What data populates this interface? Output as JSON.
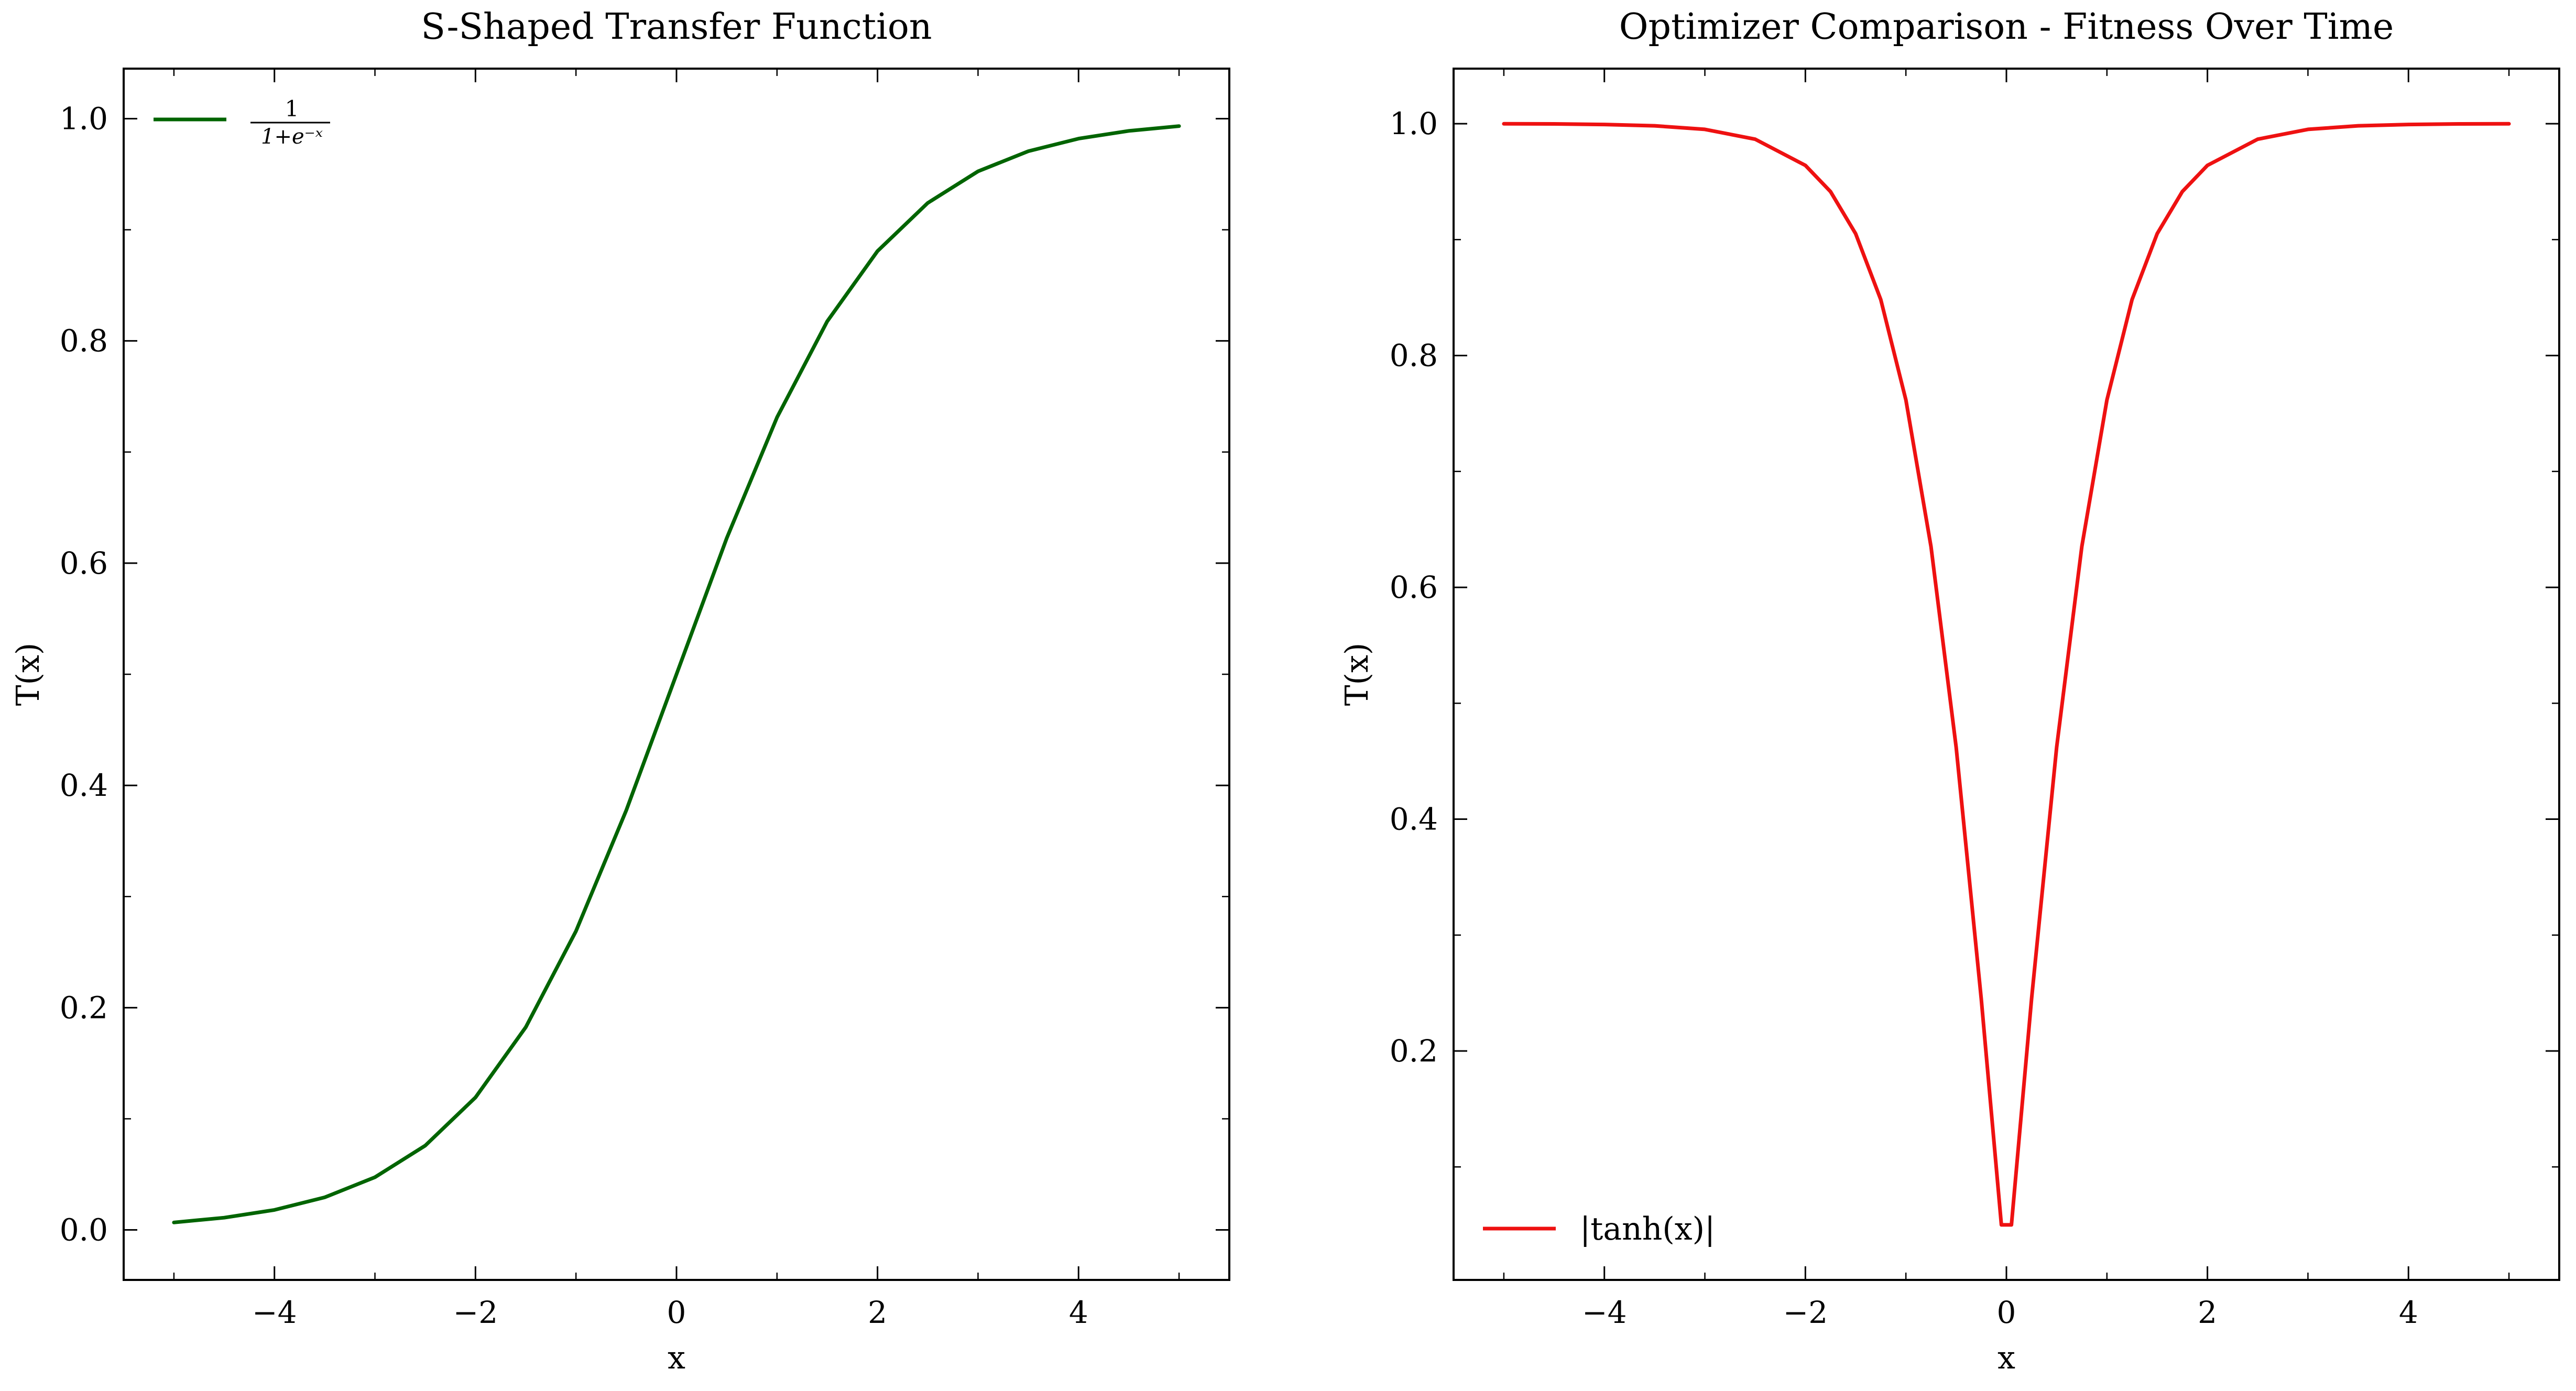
{
  "chart_data": [
    {
      "type": "line",
      "title": "S-Shaped Transfer Function",
      "xlabel": "x",
      "ylabel": "T(x)",
      "xlim": [
        -5.5,
        5.5
      ],
      "ylim": [
        -0.045,
        1.045
      ],
      "xticks": [
        -4,
        -2,
        0,
        2,
        4
      ],
      "xtick_labels": [
        "−4",
        "−2",
        "0",
        "2",
        "4"
      ],
      "yticks": [
        0.0,
        0.2,
        0.4,
        0.6,
        0.8,
        1.0
      ],
      "ytick_labels": [
        "0.0",
        "0.2",
        "0.4",
        "0.6",
        "0.8",
        "1.0"
      ],
      "grid": false,
      "legend_position": "upper-left",
      "series": [
        {
          "name": "1/(1+e^{-x})",
          "legend_numerator": "1",
          "legend_denominator": "1+e⁻ˣ",
          "color": "#006400",
          "x": [
            -5.0,
            -4.5,
            -4.0,
            -3.5,
            -3.0,
            -2.5,
            -2.0,
            -1.5,
            -1.0,
            -0.5,
            0.0,
            0.5,
            1.0,
            1.5,
            2.0,
            2.5,
            3.0,
            3.5,
            4.0,
            4.5,
            5.0
          ],
          "y": [
            0.0067,
            0.011,
            0.018,
            0.0293,
            0.0474,
            0.0759,
            0.1192,
            0.1824,
            0.2689,
            0.3775,
            0.5,
            0.6225,
            0.7311,
            0.8176,
            0.8808,
            0.9241,
            0.9526,
            0.9707,
            0.982,
            0.989,
            0.9933
          ]
        }
      ]
    },
    {
      "type": "line",
      "title": "Optimizer Comparison - Fitness Over Time",
      "xlabel": "x",
      "ylabel": "T(x)",
      "xlim": [
        -5.5,
        5.5
      ],
      "ylim": [
        0.0025,
        1.0475
      ],
      "xticks": [
        -4,
        -2,
        0,
        2,
        4
      ],
      "xtick_labels": [
        "−4",
        "−2",
        "0",
        "2",
        "4"
      ],
      "yticks": [
        0.2,
        0.4,
        0.6,
        0.8,
        1.0
      ],
      "ytick_labels": [
        "0.2",
        "0.4",
        "0.6",
        "0.8",
        "1.0"
      ],
      "grid": false,
      "legend_position": "lower-left",
      "series": [
        {
          "name": "|tanh(x)|",
          "legend_text": "|tanh(x)|",
          "color": "#ee1111",
          "x": [
            -5.0,
            -4.5,
            -4.0,
            -3.5,
            -3.0,
            -2.5,
            -2.0,
            -1.75,
            -1.5,
            -1.25,
            -1.0,
            -0.75,
            -0.5,
            -0.25,
            -0.05,
            0.05,
            0.25,
            0.5,
            0.75,
            1.0,
            1.25,
            1.5,
            1.75,
            2.0,
            2.5,
            3.0,
            3.5,
            4.0,
            4.5,
            5.0
          ],
          "y": [
            0.9999,
            0.9998,
            0.9993,
            0.9982,
            0.9951,
            0.9866,
            0.964,
            0.9414,
            0.9051,
            0.8483,
            0.7616,
            0.6351,
            0.4621,
            0.2449,
            0.05,
            0.05,
            0.2449,
            0.4621,
            0.6351,
            0.7616,
            0.8483,
            0.9051,
            0.9414,
            0.964,
            0.9866,
            0.9951,
            0.9982,
            0.9993,
            0.9998,
            0.9999
          ]
        }
      ]
    }
  ]
}
